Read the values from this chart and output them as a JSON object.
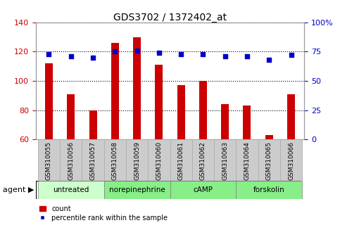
{
  "title": "GDS3702 / 1372402_at",
  "categories": [
    "GSM310055",
    "GSM310056",
    "GSM310057",
    "GSM310058",
    "GSM310059",
    "GSM310060",
    "GSM310061",
    "GSM310062",
    "GSM310063",
    "GSM310064",
    "GSM310065",
    "GSM310066"
  ],
  "count_values": [
    112,
    91,
    80,
    126,
    130,
    111,
    97,
    100,
    84,
    83,
    63,
    91
  ],
  "percentile_values": [
    73,
    71,
    70,
    75,
    76,
    74,
    73,
    73,
    71,
    71,
    68,
    72
  ],
  "ylim_left": [
    60,
    140
  ],
  "ylim_right": [
    0,
    100
  ],
  "yticks_left": [
    60,
    80,
    100,
    120,
    140
  ],
  "yticks_right": [
    0,
    25,
    50,
    75,
    100
  ],
  "bar_color": "#cc0000",
  "dot_color": "#0000cc",
  "agent_groups": [
    {
      "label": "untreated",
      "start": 0,
      "end": 3,
      "color": "#ccffcc"
    },
    {
      "label": "norepinephrine",
      "start": 3,
      "end": 6,
      "color": "#88ee88"
    },
    {
      "label": "cAMP",
      "start": 6,
      "end": 9,
      "color": "#88ee88"
    },
    {
      "label": "forskolin",
      "start": 9,
      "end": 12,
      "color": "#88ee88"
    }
  ],
  "bar_width": 0.35,
  "tick_box_color": "#cccccc",
  "tick_box_edge_color": "#aaaaaa",
  "legend_bar_label": "count",
  "legend_dot_label": "percentile rank within the sample",
  "agent_label": "agent"
}
